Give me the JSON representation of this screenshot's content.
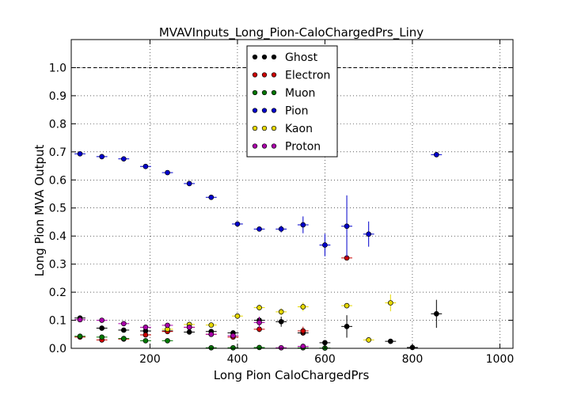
{
  "chart_data": {
    "type": "scatter",
    "title": "MVAVInputs_Long_Pion-CaloChargedPrs_Liny",
    "xlabel": "Long Pion CaloChargedPrs",
    "ylabel": "Long Pion MVA Output",
    "xlim": [
      20,
      1030
    ],
    "ylim": [
      0,
      1.1
    ],
    "x_ticks": [
      200,
      400,
      600,
      800,
      1000
    ],
    "y_ticks": [
      0.0,
      0.1,
      0.2,
      0.3,
      0.4,
      0.5,
      0.6,
      0.7,
      0.8,
      0.9,
      1.0
    ],
    "grid": true,
    "reference_line": 1.0,
    "legend_position": "top-center",
    "series": [
      {
        "name": "Ghost",
        "color": "#000000",
        "points": [
          {
            "x": 40,
            "y": 0.108,
            "err": 0.004
          },
          {
            "x": 90,
            "y": 0.072,
            "err": 0.004
          },
          {
            "x": 140,
            "y": 0.065,
            "err": 0.004
          },
          {
            "x": 190,
            "y": 0.062,
            "err": 0.004
          },
          {
            "x": 240,
            "y": 0.062,
            "err": 0.004
          },
          {
            "x": 290,
            "y": 0.058,
            "err": 0.004
          },
          {
            "x": 340,
            "y": 0.06,
            "err": 0.004
          },
          {
            "x": 390,
            "y": 0.055,
            "err": 0.005
          },
          {
            "x": 450,
            "y": 0.1,
            "err": 0.012
          },
          {
            "x": 500,
            "y": 0.095,
            "err": 0.018
          },
          {
            "x": 550,
            "y": 0.055,
            "err": 0.01
          },
          {
            "x": 600,
            "y": 0.02,
            "err": 0.005
          },
          {
            "x": 650,
            "y": 0.078,
            "err": 0.04
          },
          {
            "x": 750,
            "y": 0.025,
            "err": 0.004
          },
          {
            "x": 800,
            "y": 0.003,
            "err": 0.002
          },
          {
            "x": 855,
            "y": 0.123,
            "err": 0.05
          }
        ]
      },
      {
        "name": "Electron",
        "color": "#cc0000",
        "points": [
          {
            "x": 40,
            "y": 0.04,
            "err": 0.003
          },
          {
            "x": 90,
            "y": 0.03,
            "err": 0.003
          },
          {
            "x": 140,
            "y": 0.033,
            "err": 0.003
          },
          {
            "x": 190,
            "y": 0.048,
            "err": 0.003
          },
          {
            "x": 240,
            "y": 0.06,
            "err": 0.004
          },
          {
            "x": 290,
            "y": 0.075,
            "err": 0.005
          },
          {
            "x": 340,
            "y": 0.05,
            "err": 0.005
          },
          {
            "x": 390,
            "y": 0.04,
            "err": 0.005
          },
          {
            "x": 450,
            "y": 0.068,
            "err": 0.01
          },
          {
            "x": 550,
            "y": 0.062,
            "err": 0.015
          },
          {
            "x": 650,
            "y": 0.322,
            "err": 0.005
          }
        ]
      },
      {
        "name": "Muon",
        "color": "#007700",
        "points": [
          {
            "x": 40,
            "y": 0.043,
            "err": 0.003
          },
          {
            "x": 90,
            "y": 0.04,
            "err": 0.003
          },
          {
            "x": 140,
            "y": 0.035,
            "err": 0.003
          },
          {
            "x": 190,
            "y": 0.027,
            "err": 0.003
          },
          {
            "x": 240,
            "y": 0.027,
            "err": 0.003
          },
          {
            "x": 340,
            "y": 0.002,
            "err": 0.002
          },
          {
            "x": 390,
            "y": 0.002,
            "err": 0.002
          },
          {
            "x": 450,
            "y": 0.003,
            "err": 0.002
          },
          {
            "x": 550,
            "y": 0.002,
            "err": 0.002
          },
          {
            "x": 600,
            "y": 0.001,
            "err": 0.002
          }
        ]
      },
      {
        "name": "Pion",
        "color": "#0000cc",
        "points": [
          {
            "x": 40,
            "y": 0.693,
            "err": 0.002
          },
          {
            "x": 90,
            "y": 0.683,
            "err": 0.002
          },
          {
            "x": 140,
            "y": 0.675,
            "err": 0.002
          },
          {
            "x": 190,
            "y": 0.648,
            "err": 0.002
          },
          {
            "x": 240,
            "y": 0.626,
            "err": 0.003
          },
          {
            "x": 290,
            "y": 0.587,
            "err": 0.003
          },
          {
            "x": 340,
            "y": 0.538,
            "err": 0.004
          },
          {
            "x": 400,
            "y": 0.443,
            "err": 0.005
          },
          {
            "x": 450,
            "y": 0.425,
            "err": 0.008
          },
          {
            "x": 500,
            "y": 0.425,
            "err": 0.012
          },
          {
            "x": 550,
            "y": 0.44,
            "err": 0.03
          },
          {
            "x": 600,
            "y": 0.368,
            "err": 0.04
          },
          {
            "x": 650,
            "y": 0.435,
            "err": 0.11
          },
          {
            "x": 700,
            "y": 0.407,
            "err": 0.045
          },
          {
            "x": 855,
            "y": 0.69,
            "err": 0.003
          }
        ]
      },
      {
        "name": "Kaon",
        "color": "#e6d800",
        "points": [
          {
            "x": 240,
            "y": 0.068,
            "err": 0.004
          },
          {
            "x": 290,
            "y": 0.085,
            "err": 0.004
          },
          {
            "x": 340,
            "y": 0.083,
            "err": 0.005
          },
          {
            "x": 400,
            "y": 0.115,
            "err": 0.008
          },
          {
            "x": 450,
            "y": 0.145,
            "err": 0.01
          },
          {
            "x": 500,
            "y": 0.13,
            "err": 0.012
          },
          {
            "x": 550,
            "y": 0.148,
            "err": 0.015
          },
          {
            "x": 650,
            "y": 0.152,
            "err": 0.006
          },
          {
            "x": 700,
            "y": 0.03,
            "err": 0.003
          },
          {
            "x": 750,
            "y": 0.162,
            "err": 0.03
          }
        ]
      },
      {
        "name": "Proton",
        "color": "#aa00aa",
        "points": [
          {
            "x": 40,
            "y": 0.102,
            "err": 0.004
          },
          {
            "x": 90,
            "y": 0.1,
            "err": 0.004
          },
          {
            "x": 140,
            "y": 0.088,
            "err": 0.004
          },
          {
            "x": 190,
            "y": 0.075,
            "err": 0.004
          },
          {
            "x": 240,
            "y": 0.082,
            "err": 0.004
          },
          {
            "x": 290,
            "y": 0.075,
            "err": 0.005
          },
          {
            "x": 340,
            "y": 0.05,
            "err": 0.005
          },
          {
            "x": 390,
            "y": 0.045,
            "err": 0.006
          },
          {
            "x": 450,
            "y": 0.092,
            "err": 0.02
          },
          {
            "x": 500,
            "y": 0.002,
            "err": 0.002
          },
          {
            "x": 550,
            "y": 0.007,
            "err": 0.003
          }
        ]
      }
    ]
  }
}
